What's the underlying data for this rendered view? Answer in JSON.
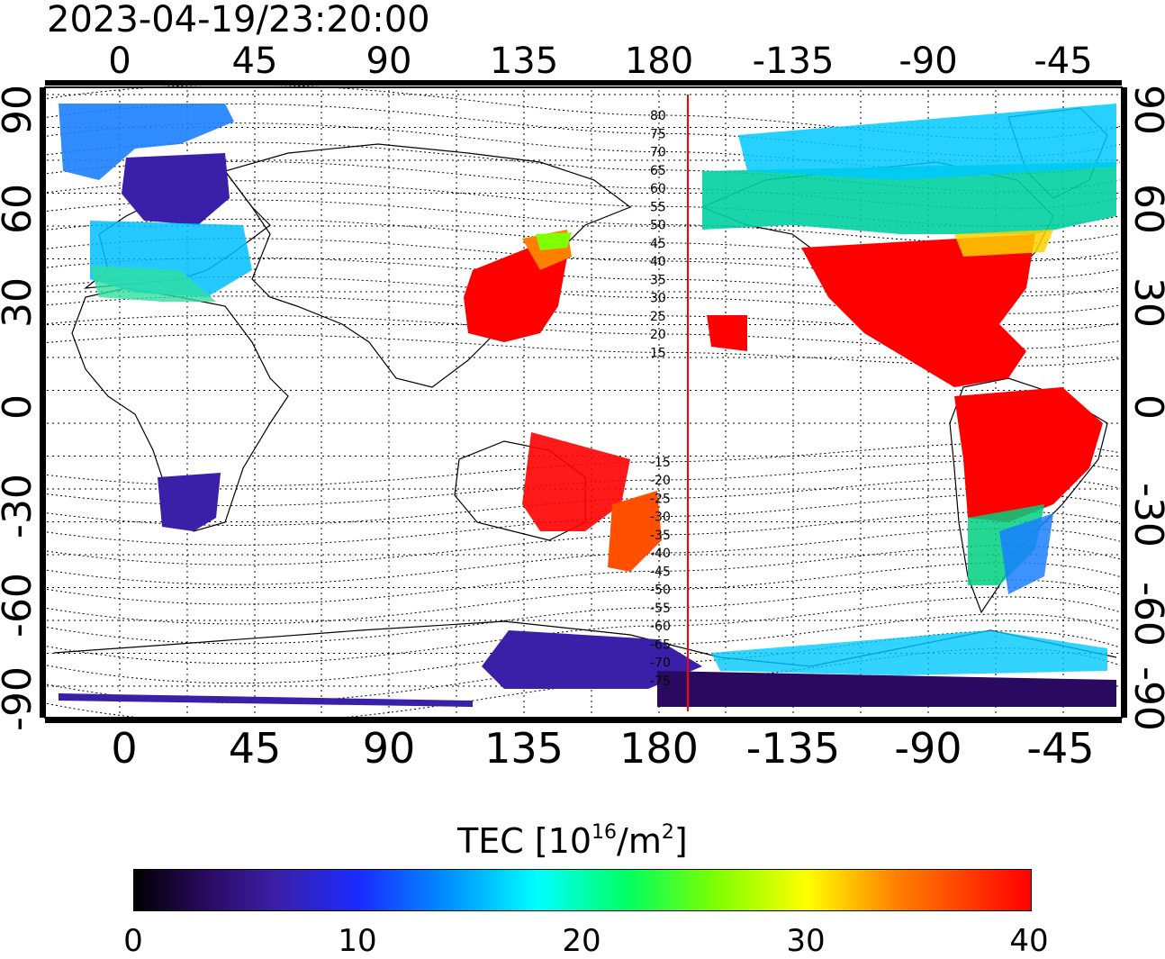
{
  "title": "2023-04-19/23:20:00",
  "axes": {
    "top_lon_ticks": [
      "0",
      "45",
      "90",
      "135",
      "180",
      "-135",
      "-90",
      "-45"
    ],
    "bottom_lon_ticks": [
      "0",
      "45",
      "90",
      "135",
      "180",
      "-135",
      "-90",
      "-45"
    ],
    "left_lat_ticks": [
      "90",
      "60",
      "30",
      "0",
      "-30",
      "-60",
      "-90"
    ],
    "right_lat_ticks": [
      "90",
      "60",
      "30",
      "0",
      "-30",
      "-60",
      "-90"
    ]
  },
  "magnetic_latitude_labels": [
    "80",
    "75",
    "70",
    "65",
    "60",
    "55",
    "50",
    "45",
    "40",
    "35",
    "30",
    "25",
    "20",
    "15",
    "-15",
    "-20",
    "-25",
    "-30",
    "-35",
    "-40",
    "-45",
    "-50",
    "-55",
    "-60",
    "-65",
    "-70",
    "-75"
  ],
  "colorbar": {
    "title_text": "TEC  [10",
    "title_exp": "16",
    "title_unit": "/m",
    "title_unit_exp": "2",
    "title_close": "]",
    "ticks": [
      "0",
      "10",
      "20",
      "30",
      "40"
    ],
    "min": 0,
    "max": 40
  },
  "colors": {
    "terminator_line": "#ff0000",
    "low_tec": "#2a0a60",
    "high_tec": "#ff0000"
  }
}
